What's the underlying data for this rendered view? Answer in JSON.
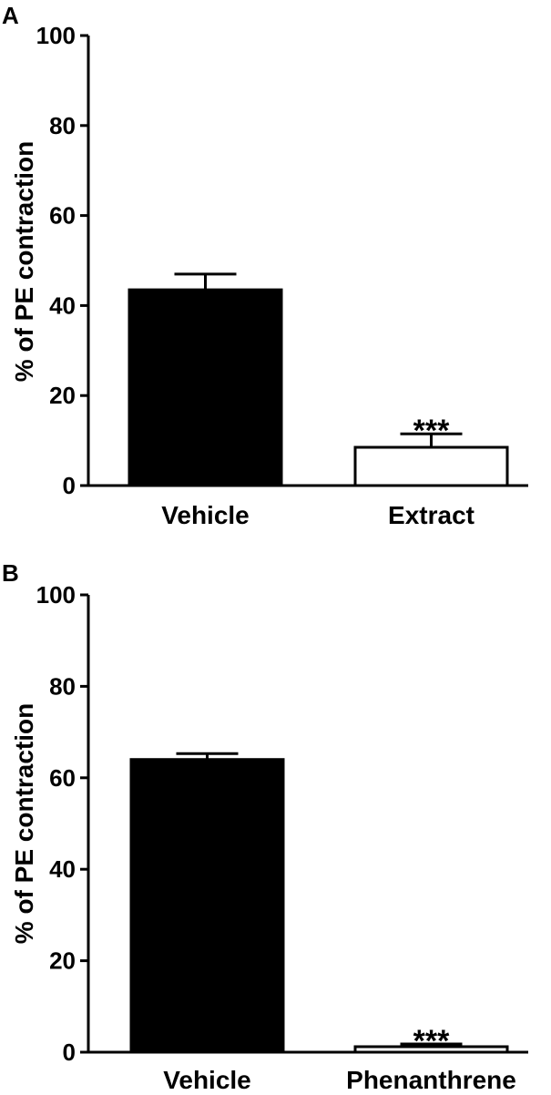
{
  "chart_data": [
    {
      "panel_label": "A",
      "type": "bar",
      "categories": [
        "Vehicle",
        "Extract"
      ],
      "values": [
        43.5,
        8.5
      ],
      "errors": [
        3.5,
        3.0
      ],
      "bar_fill": [
        "#000000",
        "#ffffff"
      ],
      "annotations": [
        "",
        "***"
      ],
      "ylabel": "% of PE contraction",
      "ylim": [
        0,
        100
      ],
      "yticks": [
        "0",
        "20",
        "40",
        "60",
        "80",
        "100"
      ],
      "grid": false
    },
    {
      "panel_label": "B",
      "type": "bar",
      "categories": [
        "Vehicle",
        "Phenanthrene"
      ],
      "values": [
        64,
        1.2
      ],
      "errors": [
        1.3,
        0.6
      ],
      "bar_fill": [
        "#000000",
        "#ffffff"
      ],
      "annotations": [
        "",
        "***"
      ],
      "ylabel": "% of PE contraction",
      "ylim": [
        0,
        100
      ],
      "yticks": [
        "0",
        "20",
        "40",
        "60",
        "80",
        "100"
      ],
      "grid": false
    }
  ]
}
